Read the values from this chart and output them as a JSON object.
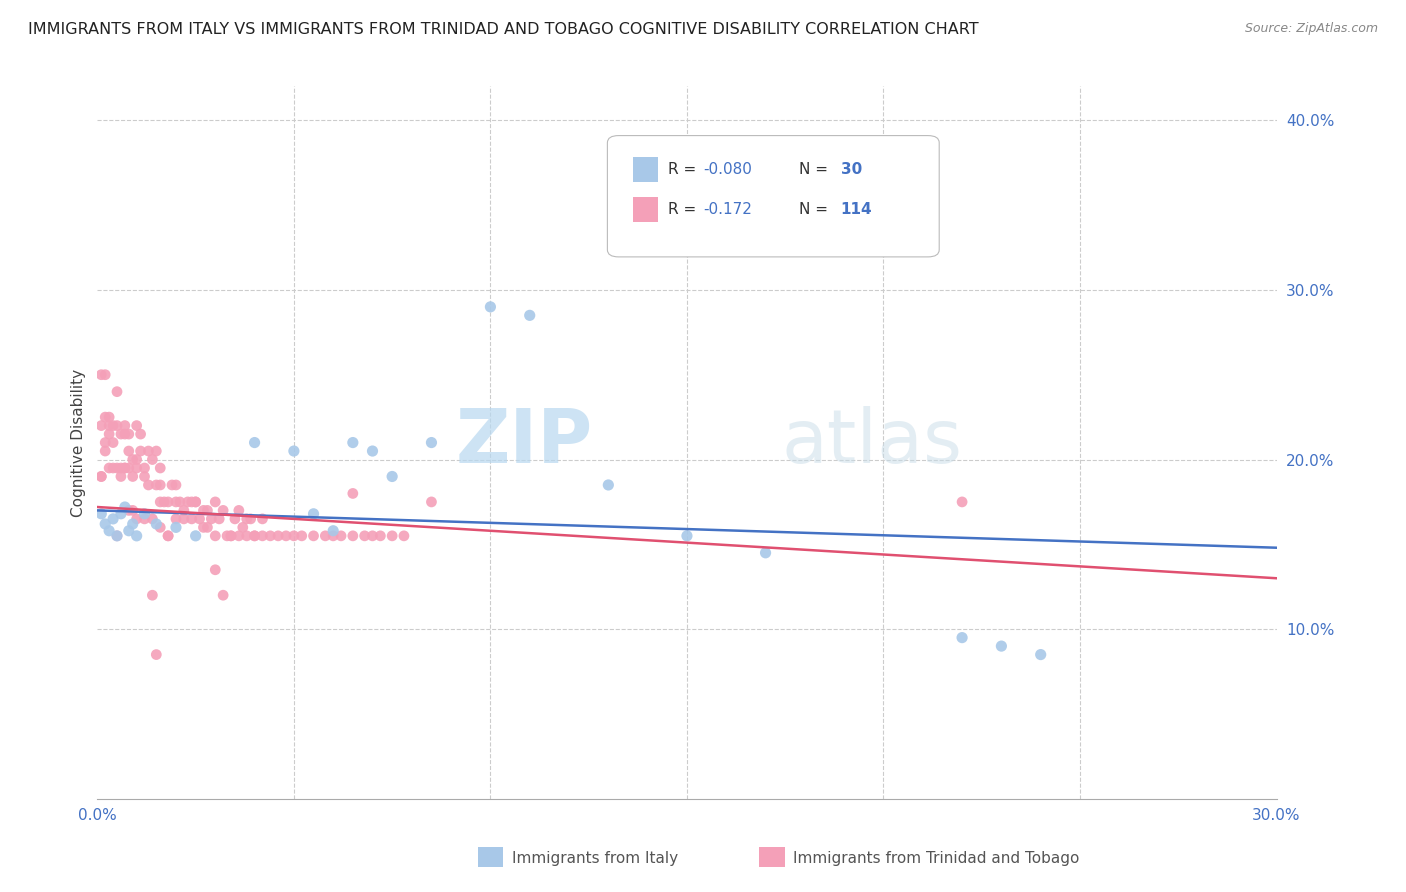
{
  "title": "IMMIGRANTS FROM ITALY VS IMMIGRANTS FROM TRINIDAD AND TOBAGO COGNITIVE DISABILITY CORRELATION CHART",
  "source": "Source: ZipAtlas.com",
  "ylabel_label": "Cognitive Disability",
  "xlim": [
    0.0,
    0.3
  ],
  "ylim": [
    0.0,
    0.42
  ],
  "italy_color": "#a8c8e8",
  "italy_line_color": "#4472c4",
  "tt_color": "#f4a0b8",
  "tt_line_color": "#e05070",
  "background_color": "#ffffff",
  "watermark_zip": "ZIP",
  "watermark_atlas": "atlas",
  "italy_line_x0": 0.0,
  "italy_line_y0": 0.17,
  "italy_line_x1": 0.3,
  "italy_line_y1": 0.148,
  "tt_line_x0": 0.0,
  "tt_line_y0": 0.172,
  "tt_line_x1": 0.3,
  "tt_line_y1": 0.13,
  "italy_x": [
    0.001,
    0.002,
    0.003,
    0.004,
    0.005,
    0.006,
    0.007,
    0.008,
    0.009,
    0.01,
    0.012,
    0.015,
    0.02,
    0.025,
    0.04,
    0.05,
    0.055,
    0.06,
    0.065,
    0.07,
    0.075,
    0.085,
    0.1,
    0.11,
    0.13,
    0.15,
    0.17,
    0.22,
    0.23,
    0.24
  ],
  "italy_y": [
    0.168,
    0.162,
    0.158,
    0.165,
    0.155,
    0.168,
    0.172,
    0.158,
    0.162,
    0.155,
    0.168,
    0.162,
    0.16,
    0.155,
    0.21,
    0.205,
    0.168,
    0.158,
    0.21,
    0.205,
    0.19,
    0.21,
    0.29,
    0.285,
    0.185,
    0.155,
    0.145,
    0.095,
    0.09,
    0.085
  ],
  "tt_x": [
    0.001,
    0.001,
    0.001,
    0.002,
    0.002,
    0.002,
    0.003,
    0.003,
    0.003,
    0.004,
    0.004,
    0.005,
    0.005,
    0.005,
    0.006,
    0.006,
    0.007,
    0.007,
    0.007,
    0.008,
    0.008,
    0.008,
    0.009,
    0.009,
    0.01,
    0.01,
    0.01,
    0.011,
    0.011,
    0.012,
    0.012,
    0.013,
    0.013,
    0.014,
    0.015,
    0.015,
    0.016,
    0.016,
    0.017,
    0.018,
    0.018,
    0.019,
    0.02,
    0.02,
    0.021,
    0.022,
    0.023,
    0.024,
    0.025,
    0.026,
    0.027,
    0.028,
    0.029,
    0.03,
    0.031,
    0.032,
    0.033,
    0.034,
    0.035,
    0.036,
    0.037,
    0.038,
    0.039,
    0.04,
    0.042,
    0.044,
    0.046,
    0.048,
    0.05,
    0.052,
    0.055,
    0.058,
    0.06,
    0.062,
    0.065,
    0.068,
    0.07,
    0.072,
    0.075,
    0.078,
    0.008,
    0.009,
    0.01,
    0.012,
    0.014,
    0.016,
    0.018,
    0.02,
    0.022,
    0.024,
    0.025,
    0.027,
    0.028,
    0.03,
    0.032,
    0.034,
    0.036,
    0.038,
    0.04,
    0.042,
    0.001,
    0.002,
    0.003,
    0.004,
    0.005,
    0.006,
    0.007,
    0.014,
    0.015,
    0.016,
    0.03,
    0.065,
    0.085,
    0.22
  ],
  "tt_y": [
    0.25,
    0.22,
    0.19,
    0.225,
    0.21,
    0.205,
    0.22,
    0.195,
    0.215,
    0.195,
    0.21,
    0.22,
    0.195,
    0.24,
    0.19,
    0.215,
    0.215,
    0.195,
    0.22,
    0.195,
    0.205,
    0.215,
    0.2,
    0.19,
    0.195,
    0.22,
    0.2,
    0.215,
    0.205,
    0.19,
    0.195,
    0.205,
    0.185,
    0.2,
    0.205,
    0.185,
    0.195,
    0.185,
    0.175,
    0.175,
    0.155,
    0.185,
    0.175,
    0.165,
    0.175,
    0.165,
    0.175,
    0.165,
    0.175,
    0.165,
    0.17,
    0.16,
    0.165,
    0.175,
    0.165,
    0.17,
    0.155,
    0.155,
    0.165,
    0.155,
    0.16,
    0.155,
    0.165,
    0.155,
    0.155,
    0.155,
    0.155,
    0.155,
    0.155,
    0.155,
    0.155,
    0.155,
    0.155,
    0.155,
    0.155,
    0.155,
    0.155,
    0.155,
    0.155,
    0.155,
    0.17,
    0.17,
    0.165,
    0.165,
    0.165,
    0.16,
    0.155,
    0.185,
    0.17,
    0.175,
    0.175,
    0.16,
    0.17,
    0.155,
    0.12,
    0.155,
    0.17,
    0.165,
    0.155,
    0.165,
    0.19,
    0.25,
    0.225,
    0.22,
    0.155,
    0.195,
    0.195,
    0.12,
    0.085,
    0.175,
    0.135,
    0.18,
    0.175,
    0.175
  ]
}
